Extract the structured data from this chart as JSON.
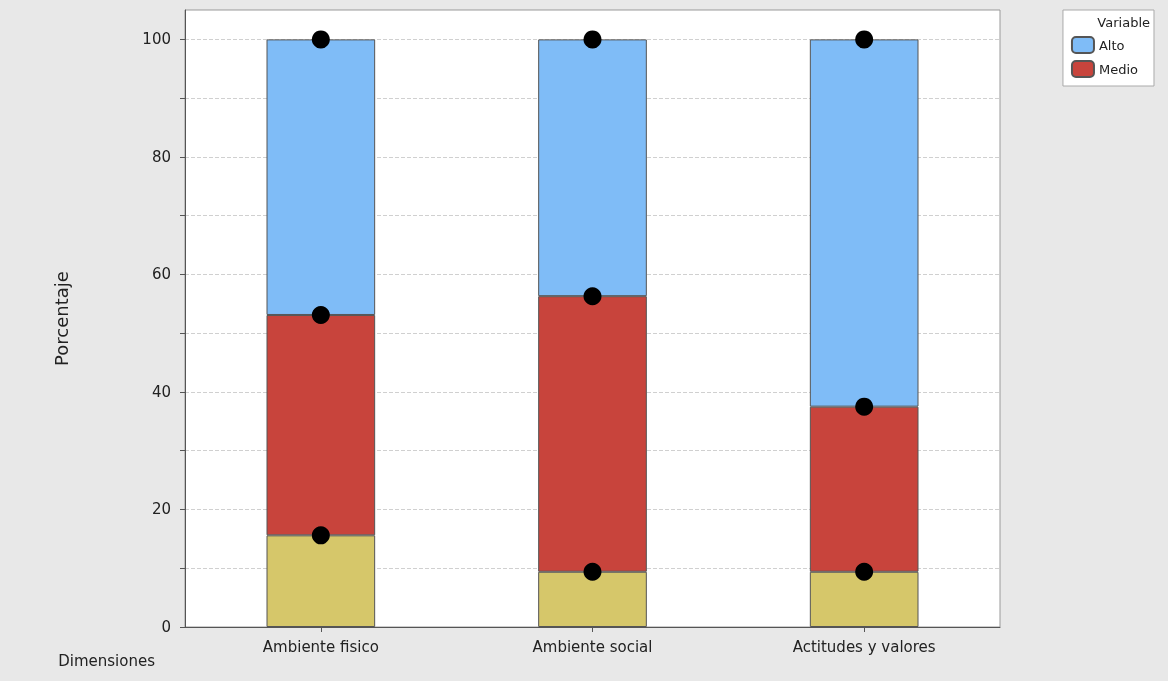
{
  "chart_data": {
    "type": "bar",
    "stacked": true,
    "xlabel": "Dimensiones",
    "ylabel": "Porcentaje",
    "legend_title": "Variable",
    "legend": "top right",
    "grid": "y",
    "categories": [
      "Ambiente fisico",
      "Ambiente social",
      "Actitudes y valores"
    ],
    "ylim": [
      0,
      105
    ],
    "yticks": [
      0,
      {
        "value": 10,
        "label": null
      },
      20,
      {
        "value": 30,
        "label": null
      },
      40,
      {
        "value": 50,
        "label": null
      },
      60,
      {
        "value": 70,
        "label": null
      },
      80,
      {
        "value": 90,
        "label": null
      },
      100
    ],
    "series": [
      {
        "color": "#d6c76a",
        "values": [
          15.6,
          9.4,
          9.4
        ]
      },
      {
        "name": "Medio",
        "color": "#c8443c",
        "values": [
          37.5,
          46.9,
          28.1
        ]
      },
      {
        "name": "Alto",
        "color": "#7fbcf7",
        "values": [
          46.9,
          43.7,
          62.5
        ]
      },
      {
        "type": "scatter",
        "color": "#000000",
        "marker": "circle",
        "x": [
          "Ambiente fisico",
          "Ambiente fisico",
          "Ambiente fisico",
          "Ambiente social",
          "Ambiente social",
          "Ambiente social",
          "Actitudes y valores",
          "Actitudes y valores",
          "Actitudes y valores"
        ],
        "values": [
          15.6,
          53.1,
          100,
          9.4,
          56.3,
          100,
          9.4,
          37.5,
          100
        ]
      }
    ]
  }
}
